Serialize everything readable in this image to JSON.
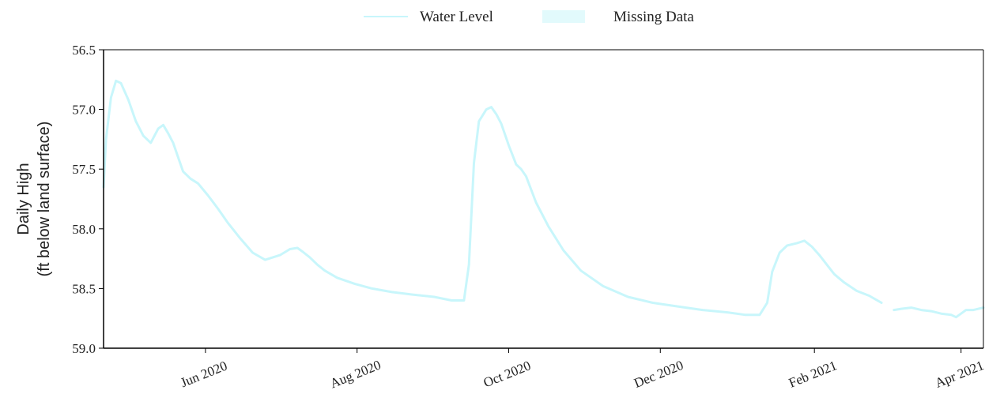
{
  "chart_data": {
    "type": "line",
    "title": "",
    "ylabel_lines": [
      "Daily High",
      "(ft below land surface)"
    ],
    "xlabel": "",
    "y_inverted": true,
    "ylim": [
      56.5,
      59.0
    ],
    "yticks": [
      "56.5",
      "57.0",
      "57.5",
      "58.0",
      "58.5",
      "59.0"
    ],
    "xlim": [
      "2020-04-21",
      "2021-04-10"
    ],
    "xticks": [
      {
        "date": "2020-06-01",
        "label": "Jun 2020"
      },
      {
        "date": "2020-08-01",
        "label": "Aug 2020"
      },
      {
        "date": "2020-10-01",
        "label": "Oct 2020"
      },
      {
        "date": "2020-12-01",
        "label": "Dec 2020"
      },
      {
        "date": "2021-02-01",
        "label": "Feb 2021"
      },
      {
        "date": "2021-04-01",
        "label": "Apr 2021"
      }
    ],
    "grid": false,
    "legend": {
      "placement": "top-center",
      "entries": [
        "Water Level",
        "Missing Data"
      ]
    },
    "colors": {
      "water_level": "#c8f6fb",
      "missing_data": "#e2fafc",
      "axis": "#000000"
    },
    "series": [
      {
        "name": "Water Level",
        "segments": [
          {
            "x": [
              "2020-04-21",
              "2020-04-22",
              "2020-04-24",
              "2020-04-26",
              "2020-04-28",
              "2020-05-01",
              "2020-05-04",
              "2020-05-07",
              "2020-05-10",
              "2020-05-13",
              "2020-05-15",
              "2020-05-17",
              "2020-05-19",
              "2020-05-21",
              "2020-05-23",
              "2020-05-26",
              "2020-05-29",
              "2020-06-02",
              "2020-06-06",
              "2020-06-10",
              "2020-06-15",
              "2020-06-20",
              "2020-06-25",
              "2020-07-01",
              "2020-07-05",
              "2020-07-08",
              "2020-07-10",
              "2020-07-13",
              "2020-07-16",
              "2020-07-19",
              "2020-07-24",
              "2020-07-31",
              "2020-08-07",
              "2020-08-15",
              "2020-08-23",
              "2020-09-01",
              "2020-09-08",
              "2020-09-13",
              "2020-09-15",
              "2020-09-17",
              "2020-09-19",
              "2020-09-22",
              "2020-09-24",
              "2020-09-26",
              "2020-09-28",
              "2020-10-01",
              "2020-10-04",
              "2020-10-06",
              "2020-10-08",
              "2020-10-12",
              "2020-10-17",
              "2020-10-23",
              "2020-10-30",
              "2020-11-08",
              "2020-11-18",
              "2020-11-28",
              "2020-12-08",
              "2020-12-18",
              "2020-12-28",
              "2021-01-04",
              "2021-01-10",
              "2021-01-13",
              "2021-01-15",
              "2021-01-18",
              "2021-01-21",
              "2021-01-25",
              "2021-01-28",
              "2021-01-31",
              "2021-02-03",
              "2021-02-06",
              "2021-02-09",
              "2021-02-13",
              "2021-02-18",
              "2021-02-23",
              "2021-02-28"
            ],
            "y": [
              57.65,
              57.25,
              56.9,
              56.76,
              56.78,
              56.92,
              57.1,
              57.22,
              57.28,
              57.16,
              57.13,
              57.2,
              57.28,
              57.4,
              57.52,
              57.58,
              57.62,
              57.72,
              57.83,
              57.95,
              58.08,
              58.2,
              58.26,
              58.22,
              58.17,
              58.16,
              58.19,
              58.24,
              58.3,
              58.35,
              58.41,
              58.46,
              58.5,
              58.53,
              58.55,
              58.57,
              58.6,
              58.6,
              58.3,
              57.45,
              57.1,
              57.0,
              56.98,
              57.04,
              57.12,
              57.3,
              57.46,
              57.5,
              57.56,
              57.78,
              57.98,
              58.18,
              58.35,
              58.48,
              58.57,
              58.62,
              58.65,
              58.68,
              58.7,
              58.72,
              58.72,
              58.62,
              58.36,
              58.2,
              58.14,
              58.12,
              58.1,
              58.15,
              58.22,
              58.3,
              58.38,
              58.45,
              58.52,
              58.56,
              58.62
            ]
          },
          {
            "x": [
              "2021-03-05",
              "2021-03-08",
              "2021-03-12",
              "2021-03-16",
              "2021-03-20",
              "2021-03-24",
              "2021-03-28",
              "2021-03-30",
              "2021-04-01",
              "2021-04-03",
              "2021-04-06",
              "2021-04-10"
            ],
            "y": [
              58.68,
              58.67,
              58.66,
              58.68,
              58.69,
              58.71,
              58.72,
              58.74,
              58.71,
              58.68,
              58.68,
              58.66
            ]
          }
        ]
      }
    ]
  }
}
